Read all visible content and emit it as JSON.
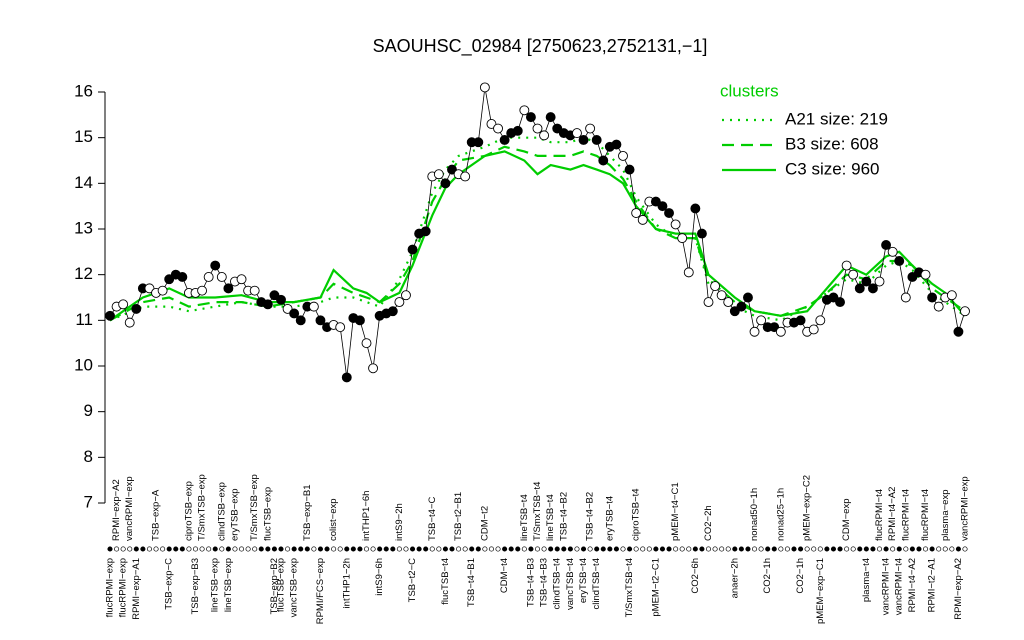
{
  "chart_data": {
    "type": "line",
    "title": "SAOUHSC_02984 [2750623,2752131,−1]",
    "ylim": [
      7,
      16
    ],
    "yticks": [
      7,
      8,
      9,
      10,
      11,
      12,
      13,
      14,
      15,
      16
    ],
    "color": "#000000",
    "values": [
      11.1,
      11.3,
      11.35,
      10.95,
      11.25,
      11.7,
      11.7,
      11.6,
      11.65,
      11.9,
      12.0,
      11.95,
      11.6,
      11.6,
      11.65,
      11.95,
      12.2,
      11.95,
      11.7,
      11.85,
      11.9,
      11.65,
      11.65,
      11.4,
      11.35,
      11.55,
      11.45,
      11.25,
      11.15,
      11.0,
      11.3,
      11.3,
      11.0,
      10.85,
      10.9,
      10.85,
      9.75,
      11.05,
      11.0,
      10.5,
      9.95,
      11.1,
      11.15,
      11.2,
      11.4,
      11.55,
      12.55,
      12.9,
      12.95,
      14.15,
      14.2,
      14.0,
      14.3,
      14.2,
      14.15,
      14.9,
      14.9,
      16.1,
      15.3,
      15.2,
      14.95,
      15.1,
      15.15,
      15.6,
      15.45,
      15.2,
      15.05,
      15.45,
      15.2,
      15.1,
      15.05,
      15.1,
      14.95,
      15.2,
      14.95,
      14.5,
      14.8,
      14.85,
      14.6,
      14.3,
      13.35,
      13.2,
      13.6,
      13.6,
      13.5,
      13.35,
      13.1,
      12.8,
      12.05,
      13.45,
      12.9,
      11.4,
      11.75,
      11.55,
      11.4,
      11.2,
      11.3,
      11.5,
      10.75,
      11.0,
      10.85,
      10.85,
      10.75,
      10.95,
      10.95,
      11.0,
      10.75,
      10.8,
      11.0,
      11.45,
      11.5,
      11.4,
      12.2,
      12.0,
      11.7,
      11.85,
      11.7,
      11.85,
      12.65,
      12.5,
      12.3,
      11.5,
      11.95,
      12.05,
      12.0,
      11.5,
      11.3,
      11.5,
      11.55,
      10.75,
      11.2
    ],
    "point_filled": [
      true,
      false,
      false,
      false,
      true,
      true,
      false,
      false,
      false,
      true,
      true,
      true,
      false,
      false,
      false,
      false,
      true,
      false,
      true,
      false,
      false,
      false,
      false,
      true,
      true,
      true,
      true,
      false,
      true,
      true,
      true,
      false,
      true,
      true,
      false,
      false,
      true,
      true,
      true,
      false,
      false,
      true,
      true,
      true,
      false,
      false,
      true,
      true,
      true,
      false,
      false,
      true,
      true,
      false,
      false,
      true,
      true,
      false,
      false,
      false,
      true,
      true,
      true,
      false,
      true,
      false,
      false,
      true,
      true,
      true,
      true,
      false,
      true,
      false,
      true,
      true,
      true,
      true,
      false,
      true,
      false,
      false,
      false,
      true,
      true,
      true,
      false,
      false,
      false,
      true,
      true,
      false,
      false,
      false,
      false,
      true,
      true,
      true,
      false,
      false,
      true,
      true,
      false,
      false,
      true,
      true,
      false,
      false,
      false,
      true,
      true,
      true,
      false,
      false,
      true,
      true,
      true,
      false,
      true,
      false,
      true,
      false,
      true,
      true,
      false,
      true,
      false,
      false,
      false,
      true,
      false
    ],
    "categories_bottom": [
      "flucRPMI−exp",
      null,
      "flucRPMI−exp",
      null,
      "RPMI−exp−A1",
      null,
      null,
      null,
      null,
      "TSB−exp−C",
      null,
      null,
      null,
      "TSB−exp−B3",
      null,
      null,
      "lineTSB−exp",
      null,
      "lineTSB−exp",
      null,
      null,
      null,
      null,
      null,
      null,
      "TSB−exp−B2",
      "flucTSB−exp",
      null,
      "vancTSB−exp",
      null,
      null,
      null,
      "RPMI/FCS−exp",
      null,
      null,
      null,
      "intTHP1−2h",
      null,
      null,
      null,
      null,
      "intS9−6h",
      null,
      null,
      null,
      null,
      "TSB−t2−C",
      null,
      null,
      null,
      null,
      "flucTSB−t4",
      null,
      null,
      null,
      "TSB−t4−B1",
      null,
      null,
      null,
      null,
      "CDM−t4",
      null,
      null,
      null,
      "TSB−t4−B3",
      null,
      "TSB−t4−B3",
      null,
      "clindTSB−t4",
      null,
      "vancTSB−t4",
      null,
      "eryTSB−t4",
      null,
      "clindTSB−t4",
      null,
      null,
      null,
      null,
      "T/SmxTSB−t4",
      null,
      null,
      null,
      "pMEM−t2−C1",
      null,
      null,
      null,
      null,
      null,
      "CO2−6h",
      null,
      null,
      null,
      null,
      null,
      "anaer−2h",
      null,
      null,
      null,
      null,
      "CO2−1h",
      null,
      null,
      null,
      null,
      "CO2−1h",
      null,
      null,
      "pMEM−exp−C1",
      null,
      null,
      null,
      null,
      null,
      null,
      "plasma−t4",
      null,
      null,
      "vancRPMI−t4",
      null,
      "vancRPMI−t4",
      null,
      "RPMI−t4−A2",
      null,
      null,
      "RPMI−t2−A1",
      null,
      null,
      null,
      "RPMI−exp−A2",
      null
    ],
    "categories_top": [
      null,
      "RPMI−exp−A2",
      null,
      "vancRPMI−exp",
      null,
      null,
      null,
      "TSB−exp−A",
      null,
      null,
      null,
      null,
      "ciproTSB−exp",
      null,
      "T/SmxTSB−exp",
      null,
      null,
      "clindTSB−exp",
      null,
      "eryTSB−exp",
      null,
      null,
      "T/SmxTSB−exp",
      null,
      "flucTSB−exp",
      null,
      null,
      null,
      null,
      null,
      "TSB−exp−B1",
      null,
      null,
      null,
      "colist−exp",
      null,
      null,
      null,
      null,
      "intTHP1−6h",
      null,
      null,
      null,
      null,
      "intS9−2h",
      null,
      null,
      null,
      null,
      "TSB−t4−C",
      null,
      null,
      null,
      "TSB−t2−B1",
      null,
      null,
      null,
      "CDM−t2",
      null,
      null,
      null,
      null,
      null,
      "lineTSB−t4",
      null,
      "T/SmxTSB−t4",
      null,
      "lineTSB−t4",
      null,
      "TSB−t4−B2",
      null,
      null,
      null,
      "TSB−t4−B2",
      null,
      null,
      "eryTSB−t4",
      null,
      null,
      null,
      "ciproTSB−t4",
      null,
      null,
      null,
      null,
      null,
      "pMEM−t4−C1",
      null,
      null,
      null,
      null,
      "CO2−2h",
      null,
      null,
      null,
      null,
      null,
      null,
      "nonad50−1h",
      null,
      null,
      null,
      "nonad25−1h",
      null,
      null,
      null,
      "pMEM−exp−C2",
      null,
      null,
      null,
      null,
      null,
      "CDM−exp",
      null,
      null,
      null,
      null,
      "flucRPMI−t4",
      null,
      "RPMI−t4−A2",
      null,
      "flucRPMI−t4",
      null,
      null,
      "flucRPMI−t4",
      null,
      null,
      "plasma−exp",
      null,
      null,
      "vancRPMI−exp"
    ],
    "legend_title": "clusters",
    "clusters": [
      {
        "name": "A21 size: 219",
        "color": "#00cd00",
        "linestyle": "dotted",
        "x": [
          0,
          5,
          9,
          12,
          16,
          20,
          24,
          28,
          32,
          34,
          37,
          39,
          41,
          44,
          46,
          49,
          51,
          53,
          57,
          60,
          63,
          65,
          67,
          70,
          72,
          74,
          76,
          78,
          80,
          83,
          86,
          89,
          91,
          95,
          98,
          102,
          106,
          109,
          112,
          115,
          118,
          120,
          122,
          125,
          127,
          130
        ],
        "values": [
          11.0,
          11.3,
          11.3,
          11.2,
          11.3,
          11.4,
          11.3,
          11.3,
          11.4,
          11.5,
          11.5,
          11.4,
          11.3,
          11.9,
          12.5,
          13.8,
          14.3,
          14.6,
          14.8,
          15.0,
          15.0,
          15.0,
          14.9,
          14.9,
          15.0,
          14.9,
          14.6,
          14.3,
          13.7,
          13.1,
          12.8,
          12.8,
          11.8,
          11.3,
          11.1,
          11.0,
          11.3,
          11.6,
          11.9,
          11.8,
          12.2,
          12.3,
          12.1,
          11.6,
          11.4,
          11.1
        ]
      },
      {
        "name": "B3 size: 608",
        "color": "#00cd00",
        "linestyle": "dashed",
        "x": [
          0,
          5,
          9,
          12,
          16,
          20,
          24,
          28,
          32,
          34,
          37,
          39,
          41,
          44,
          46,
          49,
          51,
          53,
          57,
          60,
          63,
          65,
          67,
          70,
          72,
          74,
          76,
          78,
          80,
          83,
          86,
          89,
          91,
          95,
          98,
          102,
          106,
          109,
          112,
          115,
          118,
          120,
          122,
          125,
          127,
          130
        ],
        "values": [
          11.0,
          11.4,
          11.5,
          11.3,
          11.4,
          11.4,
          11.3,
          11.4,
          11.5,
          11.8,
          11.6,
          11.5,
          11.4,
          11.8,
          12.3,
          13.6,
          14.1,
          14.5,
          14.6,
          14.8,
          14.7,
          14.6,
          14.6,
          14.6,
          14.7,
          14.6,
          14.4,
          14.1,
          13.6,
          13.0,
          12.8,
          12.8,
          11.9,
          11.4,
          11.2,
          11.1,
          11.3,
          11.6,
          12.0,
          11.9,
          12.3,
          12.3,
          12.2,
          11.7,
          11.5,
          11.2
        ]
      },
      {
        "name": "C3 size: 960",
        "color": "#00cd00",
        "linestyle": "solid",
        "x": [
          0,
          5,
          9,
          12,
          16,
          20,
          24,
          28,
          32,
          34,
          37,
          39,
          41,
          44,
          46,
          49,
          51,
          53,
          57,
          60,
          63,
          65,
          67,
          70,
          72,
          74,
          76,
          78,
          80,
          83,
          86,
          89,
          91,
          95,
          98,
          102,
          106,
          109,
          112,
          115,
          118,
          120,
          122,
          125,
          127,
          130
        ],
        "values": [
          11.0,
          11.5,
          11.7,
          11.5,
          11.5,
          11.55,
          11.4,
          11.4,
          11.5,
          12.1,
          11.7,
          11.6,
          11.4,
          11.6,
          12.2,
          13.3,
          13.9,
          14.2,
          14.6,
          14.7,
          14.5,
          14.2,
          14.4,
          14.3,
          14.4,
          14.3,
          14.2,
          14.0,
          13.5,
          13.0,
          12.9,
          12.9,
          12.0,
          11.5,
          11.2,
          11.1,
          11.2,
          11.7,
          12.2,
          12.0,
          12.4,
          12.5,
          12.2,
          11.8,
          11.6,
          11.1
        ]
      }
    ]
  }
}
